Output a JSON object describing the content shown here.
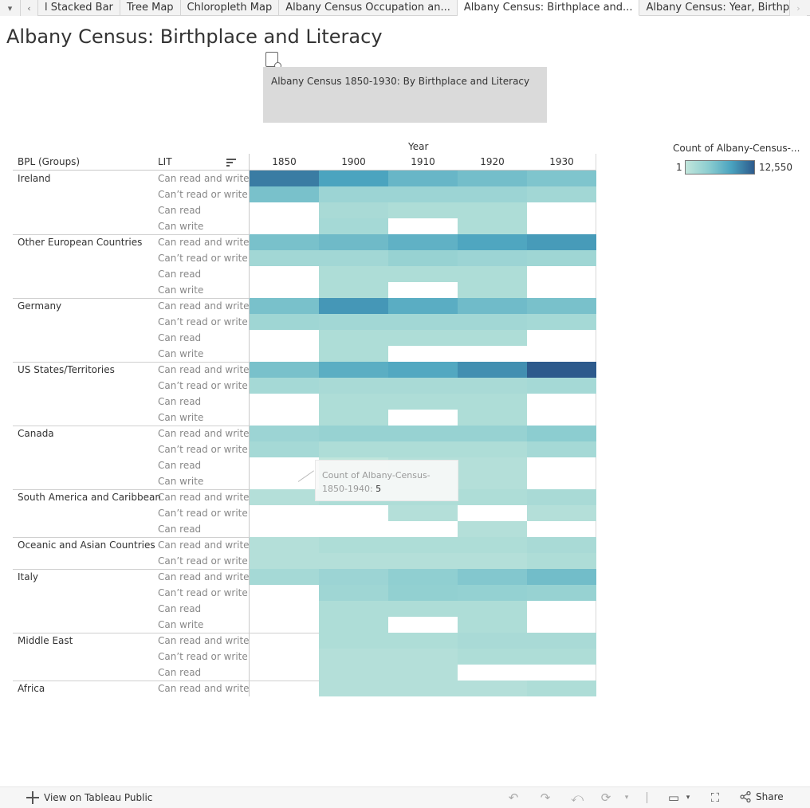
{
  "tabs": {
    "items": [
      {
        "label": "l Stacked Bar",
        "active": false
      },
      {
        "label": "Tree Map",
        "active": false
      },
      {
        "label": "Chloropleth Map",
        "active": false
      },
      {
        "label": "Albany Census Occupation an...",
        "active": false
      },
      {
        "label": "Albany Census: Birthplace and...",
        "active": true
      },
      {
        "label": "Albany Census: Year, Birthplac...",
        "active": false
      }
    ]
  },
  "page_title": "Albany Census: Birthplace and Literacy",
  "subtitle": "Albany Census 1850-1930: By Birthplace and Literacy",
  "headers": {
    "col_group_title": "Year",
    "row_dim1": "BPL (Groups)",
    "row_dim2": "LIT"
  },
  "legend": {
    "title": "Count of Albany-Census-...",
    "min": "1",
    "max": "12,550",
    "color_low": "#c2e6dc",
    "color_high": "#2d5a8c"
  },
  "tooltip": {
    "label": "Count of Albany-Census-1850-1940:",
    "value": "5"
  },
  "footer": {
    "view_label": "View on Tableau Public",
    "share_label": "Share"
  },
  "chart_data": {
    "type": "heatmap",
    "title": "",
    "x_label": "Year",
    "years": [
      "1850",
      "1900",
      "1910",
      "1920",
      "1930"
    ],
    "color_range": [
      1,
      12550
    ],
    "groups": [
      {
        "name": "Ireland",
        "rows": [
          {
            "lit": "Can read and write",
            "v": [
              9000,
              5500,
              3300,
              2600,
              2000
            ]
          },
          {
            "lit": "Can’t read or write",
            "v": [
              2300,
              700,
              700,
              700,
              500
            ]
          },
          {
            "lit": "Can read",
            "v": [
              null,
              300,
              200,
              200,
              null
            ]
          },
          {
            "lit": "Can write",
            "v": [
              null,
              400,
              null,
              200,
              null
            ]
          }
        ]
      },
      {
        "name": "Other European Countries",
        "rows": [
          {
            "lit": "Can read and write",
            "v": [
              2300,
              2900,
              3900,
              5200,
              6200
            ]
          },
          {
            "lit": "Can’t read or write",
            "v": [
              500,
              500,
              900,
              700,
              600
            ]
          },
          {
            "lit": "Can read",
            "v": [
              null,
              200,
              200,
              200,
              null
            ]
          },
          {
            "lit": "Can write",
            "v": [
              null,
              200,
              null,
              200,
              null
            ]
          }
        ]
      },
      {
        "name": "Germany",
        "rows": [
          {
            "lit": "Can read and write",
            "v": [
              2300,
              6500,
              4300,
              2800,
              2300
            ]
          },
          {
            "lit": "Can’t read or write",
            "v": [
              600,
              500,
              500,
              500,
              400
            ]
          },
          {
            "lit": "Can read",
            "v": [
              null,
              200,
              200,
              200,
              null
            ]
          },
          {
            "lit": "Can write",
            "v": [
              null,
              200,
              null,
              null,
              null
            ]
          }
        ]
      },
      {
        "name": "US States/Territories",
        "rows": [
          {
            "lit": "Can read and write",
            "v": [
              2300,
              4200,
              4900,
              7200,
              12550
            ]
          },
          {
            "lit": "Can’t read or write",
            "v": [
              400,
              300,
              300,
              300,
              400
            ]
          },
          {
            "lit": "Can read",
            "v": [
              null,
              200,
              200,
              200,
              null
            ]
          },
          {
            "lit": "Can write",
            "v": [
              null,
              200,
              null,
              200,
              null
            ]
          }
        ]
      },
      {
        "name": "Canada",
        "rows": [
          {
            "lit": "Can read and write",
            "v": [
              700,
              900,
              900,
              900,
              1400
            ]
          },
          {
            "lit": "Can’t read or write",
            "v": [
              400,
              200,
              200,
              200,
              400
            ]
          },
          {
            "lit": "Can read",
            "v": [
              null,
              5,
              100,
              100,
              null
            ]
          },
          {
            "lit": "Can write",
            "v": [
              null,
              100,
              100,
              100,
              null
            ]
          }
        ]
      },
      {
        "name": "South America and Caribbean",
        "rows": [
          {
            "lit": "Can read and write",
            "v": [
              100,
              200,
              200,
              200,
              300
            ]
          },
          {
            "lit": "Can’t read or write",
            "v": [
              null,
              null,
              100,
              null,
              100
            ]
          },
          {
            "lit": "Can read",
            "v": [
              null,
              null,
              null,
              100,
              null
            ]
          }
        ]
      },
      {
        "name": "Oceanic and Asian Countries",
        "rows": [
          {
            "lit": "Can read and write",
            "v": [
              100,
              200,
              200,
              200,
              300
            ]
          },
          {
            "lit": "Can’t read or write",
            "v": [
              100,
              100,
              100,
              100,
              200
            ]
          }
        ]
      },
      {
        "name": "Italy",
        "rows": [
          {
            "lit": "Can read and write",
            "v": [
              400,
              700,
              1200,
              1800,
              2700
            ]
          },
          {
            "lit": "Can’t read or write",
            "v": [
              null,
              600,
              1100,
              1000,
              900
            ]
          },
          {
            "lit": "Can read",
            "v": [
              null,
              200,
              200,
              200,
              null
            ]
          },
          {
            "lit": "Can write",
            "v": [
              null,
              200,
              null,
              200,
              null
            ]
          }
        ]
      },
      {
        "name": "Middle East",
        "rows": [
          {
            "lit": "Can read and write",
            "v": [
              null,
              200,
              200,
              300,
              300
            ]
          },
          {
            "lit": "Can’t read or write",
            "v": [
              null,
              100,
              100,
              200,
              200
            ]
          },
          {
            "lit": "Can read",
            "v": [
              null,
              100,
              100,
              null,
              null
            ]
          }
        ]
      },
      {
        "name": "Africa",
        "rows": [
          {
            "lit": "Can read and write",
            "v": [
              null,
              100,
              100,
              100,
              200
            ]
          }
        ]
      }
    ]
  }
}
